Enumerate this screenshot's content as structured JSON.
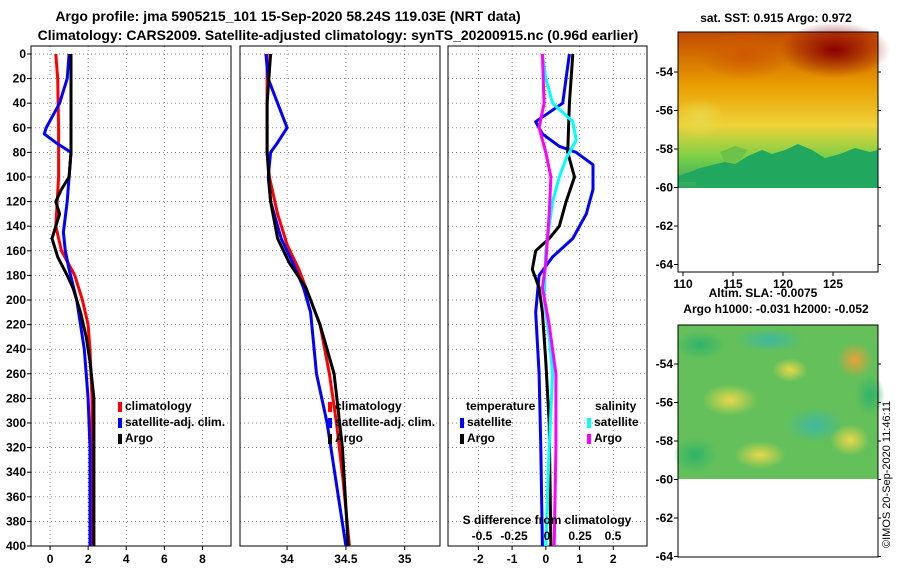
{
  "title": {
    "line1": "Argo profile: jma 5905215_101 15-Sep-2020 58.24S 119.03E (NRT data)",
    "line2": "Climatology: CARS2009. Satellite-adjusted climatology: synTS_20200915.nc (0.96d earlier)"
  },
  "colors": {
    "climatology": "#ff0000",
    "satellite": "#0000ff",
    "argo": "#000000",
    "sat_salinity": "#00ffff",
    "argo_salinity": "#ff00ff"
  },
  "chart_data": [
    {
      "type": "line",
      "id": "temperature",
      "xlim": [
        -1,
        9.5
      ],
      "ylim": [
        400,
        0
      ],
      "xticks": [
        0,
        2,
        4,
        6,
        8
      ],
      "xtick_labels": [
        "0",
        "2",
        "4",
        "6",
        "8"
      ],
      "yticks": [
        0,
        20,
        40,
        60,
        80,
        100,
        120,
        140,
        160,
        180,
        200,
        220,
        240,
        260,
        280,
        300,
        320,
        340,
        360,
        380,
        400
      ],
      "ytick_labels": [
        "0",
        "20",
        "40",
        "60",
        "80",
        "100",
        "120",
        "140",
        "160",
        "180",
        "200",
        "220",
        "240",
        "260",
        "280",
        "300",
        "320",
        "340",
        "360",
        "380",
        "400"
      ],
      "legend": [
        "climatology",
        "satellite-adj. clim.",
        "Argo"
      ],
      "series": [
        {
          "name": "climatology",
          "color": "#ff0000",
          "points": [
            [
              0.3,
              0
            ],
            [
              0.4,
              20
            ],
            [
              0.45,
              60
            ],
            [
              0.45,
              100
            ],
            [
              0.3,
              140
            ],
            [
              0.6,
              160
            ],
            [
              1.3,
              180
            ],
            [
              1.7,
              200
            ],
            [
              2.0,
              220
            ],
            [
              2.1,
              240
            ],
            [
              2.2,
              280
            ],
            [
              2.2,
              320
            ],
            [
              2.2,
              400
            ]
          ]
        },
        {
          "name": "satellite-adj. clim.",
          "color": "#0000ff",
          "points": [
            [
              1.0,
              0
            ],
            [
              0.9,
              20
            ],
            [
              0.5,
              40
            ],
            [
              -0.2,
              60
            ],
            [
              -0.3,
              65
            ],
            [
              0.3,
              72
            ],
            [
              1.1,
              80
            ],
            [
              1.0,
              100
            ],
            [
              0.9,
              120
            ],
            [
              0.7,
              145
            ],
            [
              0.8,
              160
            ],
            [
              1.0,
              175
            ],
            [
              1.4,
              200
            ],
            [
              1.8,
              240
            ],
            [
              2.0,
              280
            ],
            [
              2.1,
              320
            ],
            [
              2.1,
              400
            ]
          ]
        },
        {
          "name": "Argo",
          "color": "#000000",
          "points": [
            [
              1.1,
              0
            ],
            [
              1.1,
              40
            ],
            [
              1.1,
              80
            ],
            [
              1.0,
              100
            ],
            [
              0.6,
              110
            ],
            [
              0.3,
              120
            ],
            [
              0.5,
              130
            ],
            [
              0.1,
              150
            ],
            [
              0.4,
              165
            ],
            [
              0.9,
              180
            ],
            [
              1.2,
              190
            ],
            [
              1.6,
              210
            ],
            [
              1.9,
              230
            ],
            [
              2.1,
              250
            ],
            [
              2.3,
              280
            ],
            [
              2.3,
              320
            ],
            [
              2.3,
              400
            ]
          ]
        }
      ]
    },
    {
      "type": "line",
      "id": "salinity",
      "xlim": [
        33.6,
        35.3
      ],
      "ylim": [
        400,
        0
      ],
      "xticks": [
        34,
        34.5,
        35
      ],
      "xtick_labels": [
        "34",
        "34.5",
        "35"
      ],
      "legend": [
        "climatology",
        "satellite-adj. clim.",
        "Argo"
      ],
      "series": [
        {
          "name": "climatology",
          "color": "#ff0000",
          "points": [
            [
              33.83,
              0
            ],
            [
              33.83,
              40
            ],
            [
              33.83,
              80
            ],
            [
              33.85,
              100
            ],
            [
              33.92,
              130
            ],
            [
              34.0,
              155
            ],
            [
              34.1,
              175
            ],
            [
              34.2,
              200
            ],
            [
              34.28,
              220
            ],
            [
              34.36,
              260
            ],
            [
              34.42,
              300
            ],
            [
              34.48,
              350
            ],
            [
              34.53,
              400
            ]
          ]
        },
        {
          "name": "satellite-adj. clim.",
          "color": "#0000ff",
          "points": [
            [
              33.82,
              0
            ],
            [
              33.84,
              20
            ],
            [
              33.92,
              40
            ],
            [
              34.0,
              60
            ],
            [
              33.92,
              72
            ],
            [
              33.86,
              80
            ],
            [
              33.84,
              100
            ],
            [
              33.86,
              120
            ],
            [
              33.95,
              150
            ],
            [
              34.05,
              170
            ],
            [
              34.14,
              190
            ],
            [
              34.2,
              210
            ],
            [
              34.25,
              260
            ],
            [
              34.34,
              300
            ],
            [
              34.42,
              350
            ],
            [
              34.5,
              400
            ]
          ]
        },
        {
          "name": "Argo",
          "color": "#000000",
          "points": [
            [
              33.86,
              0
            ],
            [
              33.83,
              40
            ],
            [
              33.83,
              80
            ],
            [
              33.86,
              120
            ],
            [
              33.92,
              150
            ],
            [
              34.02,
              170
            ],
            [
              34.16,
              190
            ],
            [
              34.28,
              220
            ],
            [
              34.4,
              260
            ],
            [
              34.47,
              320
            ],
            [
              34.52,
              400
            ]
          ]
        }
      ]
    },
    {
      "type": "line",
      "id": "difference",
      "xlim": [
        -2.9,
        3.0
      ],
      "ylim": [
        400,
        0
      ],
      "xticks": [
        -2,
        -1,
        0,
        1,
        2
      ],
      "xtick_labels": [
        "-2",
        "-1",
        "0",
        "1",
        "2"
      ],
      "extra_axis_label": "S difference from climatology",
      "extra_axis_ticks": [
        "-0.5",
        "-0.25",
        "0",
        "0.25",
        "0.5"
      ],
      "legend_temperature_title": "temperature",
      "legend_salinity_title": "salinity",
      "legend_left": [
        "satellite",
        "Argo"
      ],
      "legend_right": [
        "satellite",
        "Argo"
      ],
      "series": [
        {
          "name": "T satellite",
          "color": "#0000ff",
          "points": [
            [
              0.7,
              0
            ],
            [
              0.5,
              40
            ],
            [
              -0.3,
              55
            ],
            [
              -0.1,
              65
            ],
            [
              0.4,
              75
            ],
            [
              0.9,
              80
            ],
            [
              1.4,
              90
            ],
            [
              1.4,
              110
            ],
            [
              1.2,
              130
            ],
            [
              0.8,
              150
            ],
            [
              0.2,
              165
            ],
            [
              -0.2,
              180
            ],
            [
              -0.3,
              210
            ],
            [
              -0.2,
              260
            ],
            [
              -0.15,
              320
            ],
            [
              -0.1,
              400
            ]
          ]
        },
        {
          "name": "T Argo",
          "color": "#000000",
          "points": [
            [
              0.8,
              0
            ],
            [
              0.7,
              40
            ],
            [
              0.65,
              80
            ],
            [
              0.85,
              100
            ],
            [
              0.6,
              120
            ],
            [
              0.4,
              140
            ],
            [
              0.1,
              150
            ],
            [
              -0.3,
              160
            ],
            [
              -0.4,
              175
            ],
            [
              -0.2,
              190
            ],
            [
              -0.1,
              210
            ],
            [
              0.0,
              250
            ],
            [
              0.1,
              300
            ],
            [
              0.15,
              400
            ]
          ]
        },
        {
          "name": "S satellite",
          "color": "#00ffff",
          "points": [
            [
              -0.1,
              0
            ],
            [
              0.0,
              20
            ],
            [
              0.2,
              40
            ],
            [
              0.8,
              55
            ],
            [
              0.9,
              70
            ],
            [
              0.6,
              85
            ],
            [
              0.4,
              100
            ],
            [
              0.2,
              120
            ],
            [
              0.0,
              160
            ],
            [
              -0.05,
              200
            ],
            [
              0.1,
              230
            ],
            [
              0.2,
              260
            ],
            [
              0.1,
              320
            ],
            [
              0.0,
              400
            ]
          ]
        },
        {
          "name": "S Argo",
          "color": "#ff00ff",
          "points": [
            [
              -0.1,
              0
            ],
            [
              -0.05,
              40
            ],
            [
              -0.2,
              60
            ],
            [
              0.0,
              80
            ],
            [
              0.15,
              100
            ],
            [
              0.1,
              130
            ],
            [
              0.0,
              170
            ],
            [
              -0.1,
              190
            ],
            [
              0.1,
              220
            ],
            [
              0.3,
              260
            ],
            [
              0.3,
              320
            ],
            [
              0.25,
              400
            ]
          ]
        }
      ]
    },
    {
      "type": "heatmap",
      "id": "sst-map",
      "title": "sat. SST: 0.915 Argo: 0.972",
      "xticks": [
        110,
        115,
        120,
        125
      ],
      "xtick_labels": [
        "110",
        "115",
        "120",
        "125"
      ],
      "yticks": [
        -54,
        -56,
        -58,
        -60,
        -62,
        -64
      ],
      "ytick_labels": [
        "-54",
        "-56",
        "-58",
        "-60",
        "-62",
        "-64"
      ],
      "data_extent_lat": [
        -53,
        -59.5
      ]
    },
    {
      "type": "heatmap",
      "id": "sla-map",
      "title": "Altim. SLA: -0.0075",
      "subtitle": "Argo h1000: -0.031 h2000: -0.052",
      "yticks": [
        -54,
        -56,
        -58,
        -60,
        -62,
        -64
      ],
      "ytick_labels": [
        "-54",
        "-56",
        "-58",
        "-60",
        "-62",
        "-64"
      ],
      "data_extent_lat": [
        -52.5,
        -60
      ]
    }
  ],
  "credit": "©IMOS 20-Sep-2020 11:46:11"
}
